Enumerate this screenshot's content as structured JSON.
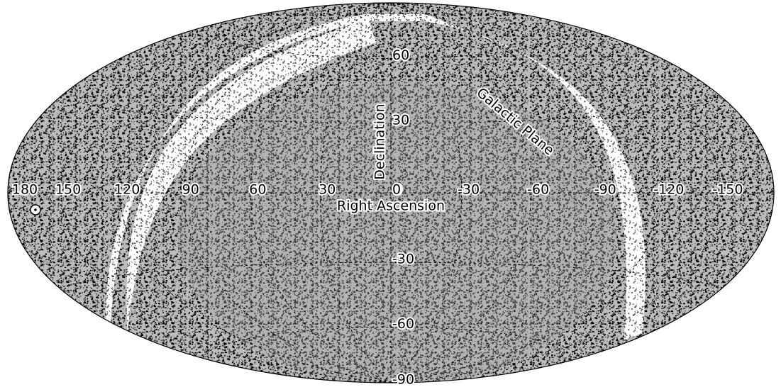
{
  "map": {
    "ra_ticks": [
      180,
      150,
      120,
      90,
      60,
      30,
      0,
      -30,
      -60,
      -90,
      -120,
      -150
    ],
    "dec_ticks": [
      60,
      30,
      0,
      -30,
      -60,
      -90
    ],
    "x_label": "Right Ascension",
    "y_label": "Declination",
    "annotation": "Galactic Plane"
  }
}
